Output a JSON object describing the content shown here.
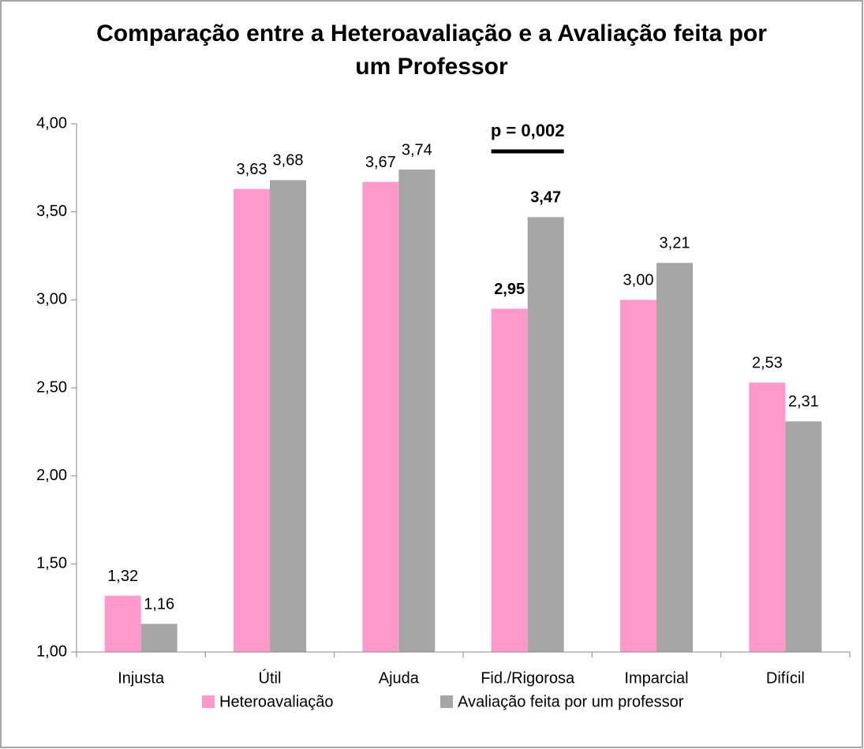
{
  "chart_data": {
    "type": "bar",
    "title": "Comparação entre a Heteroavaliação e a Avaliação feita por um Professor",
    "categories": [
      "Injusta",
      "Útil",
      "Ajuda",
      "Fid./Rigorosa",
      "Imparcial",
      "Difícil"
    ],
    "series": [
      {
        "name": "Heteroavaliação",
        "color": "#ff99cc",
        "values": [
          1.32,
          3.63,
          3.67,
          2.95,
          3.0,
          2.53
        ],
        "value_labels": [
          "1,32",
          "3,63",
          "3,67",
          "2,95",
          "3,00",
          "2,53"
        ]
      },
      {
        "name": "Avaliação feita por um professor",
        "color": "#a6a6a6",
        "values": [
          1.16,
          3.68,
          3.74,
          3.47,
          3.21,
          2.31
        ],
        "value_labels": [
          "1,16",
          "3,68",
          "3,74",
          "3,47",
          "3,21",
          "2,31"
        ]
      }
    ],
    "ylim": [
      1,
      4
    ],
    "yticks": [
      {
        "value": 1,
        "label": "1,00"
      },
      {
        "value": 1.5,
        "label": "1,50"
      },
      {
        "value": 2,
        "label": "2,00"
      },
      {
        "value": 2.5,
        "label": "2,50"
      },
      {
        "value": 3,
        "label": "3,00"
      },
      {
        "value": 3.5,
        "label": "3,50"
      },
      {
        "value": 4,
        "label": "4,00"
      }
    ],
    "annotation": "p = 0,002",
    "legend": "bottom"
  }
}
